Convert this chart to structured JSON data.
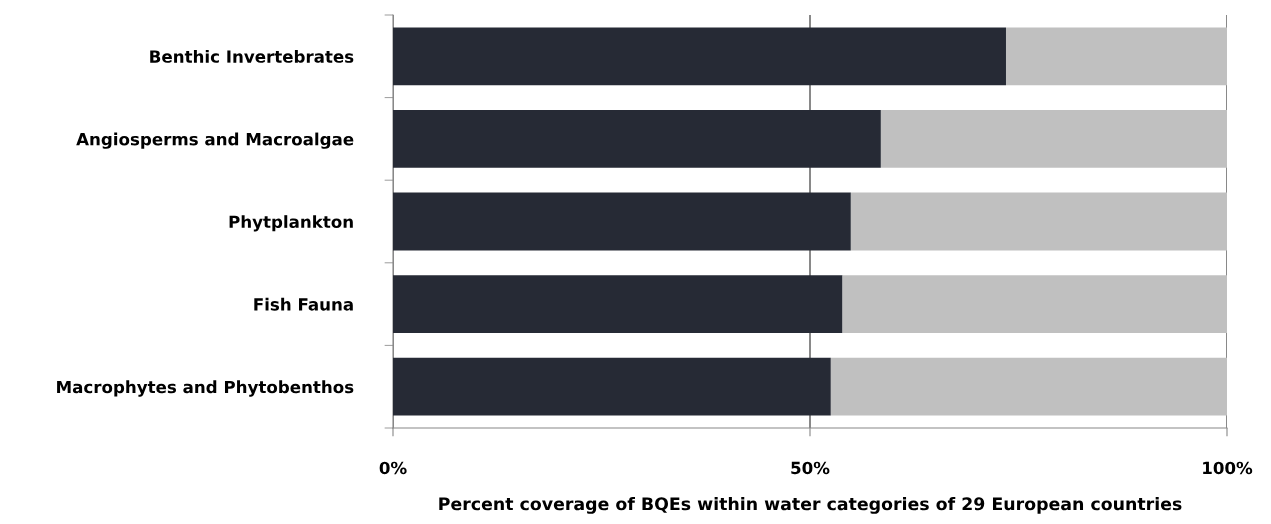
{
  "chart_data": {
    "type": "bar",
    "orientation": "horizontal",
    "stacked": true,
    "xlabel": "Percent coverage of BQEs within water categories of 29 European countries",
    "categories": [
      "Benthic Invertebrates",
      "Angiosperms and Macroalgae",
      "Phytplankton",
      "Fish Fauna",
      "Macrophytes and Phytobenthos"
    ],
    "series": [
      {
        "color": "#262a35",
        "values": [
          73.5,
          58.5,
          54.9,
          53.9,
          52.5
        ]
      },
      {
        "color": "#c0c0c0",
        "values": [
          26.5,
          41.5,
          45.1,
          46.1,
          47.5
        ]
      }
    ],
    "xlim": [
      0,
      100
    ],
    "xticks": [
      {
        "value": 0,
        "label": "0%"
      },
      {
        "value": 50,
        "label": "50%"
      },
      {
        "value": 100,
        "label": "100%"
      }
    ],
    "grid": "x",
    "legend": false
  }
}
